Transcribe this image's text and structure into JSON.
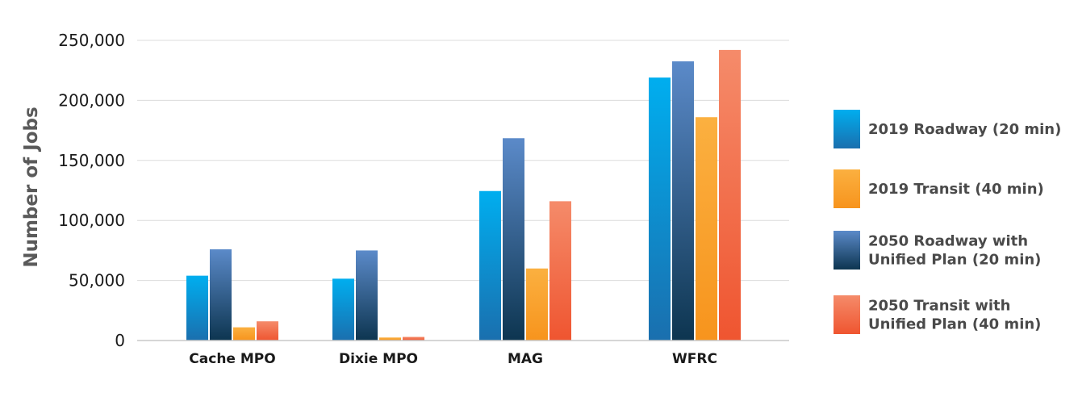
{
  "chart_data": {
    "type": "bar",
    "ylabel": "Number of Jobs",
    "xlabel": "",
    "ylim": [
      0,
      250000
    ],
    "yticks": [
      0,
      50000,
      100000,
      150000,
      200000,
      250000
    ],
    "ytick_labels": [
      "0",
      "50,000",
      "100,000",
      "150,000",
      "200,000",
      "250,000"
    ],
    "grid": true,
    "legend_position": "right",
    "categories": [
      "Cache MPO",
      "Dixie MPO",
      "MAG",
      "WFRC"
    ],
    "series": [
      {
        "name": "2019 Roadway (20 min)",
        "legend_lines": [
          "2019 Roadway (20 min)"
        ],
        "values": [
          54000,
          51500,
          124500,
          219000
        ],
        "color_top": "#00aeef",
        "color_bottom": "#1a6fae"
      },
      {
        "name": "2019 Transit (40 min)",
        "legend_lines": [
          "2019 Transit (40 min)"
        ],
        "values": [
          11000,
          2500,
          60000,
          186000
        ],
        "color_top": "#fbb040",
        "color_bottom": "#f7941d"
      },
      {
        "name": "2050 Roadway with Unified Plan (20 min)",
        "legend_lines": [
          "2050 Roadway with",
          "Unified Plan (20 min)"
        ],
        "values": [
          76000,
          75000,
          168500,
          232500
        ],
        "color_top": "#5b8ac9",
        "color_bottom": "#0d3550"
      },
      {
        "name": "2050 Transit with Unified Plan (40 min)",
        "legend_lines": [
          "2050 Transit with",
          "Unified Plan (40 min)"
        ],
        "values": [
          16000,
          3000,
          116000,
          242000
        ],
        "color_top": "#f58b6a",
        "color_bottom": "#ef5530"
      }
    ],
    "bar_order": [
      0,
      2,
      1,
      3
    ]
  }
}
